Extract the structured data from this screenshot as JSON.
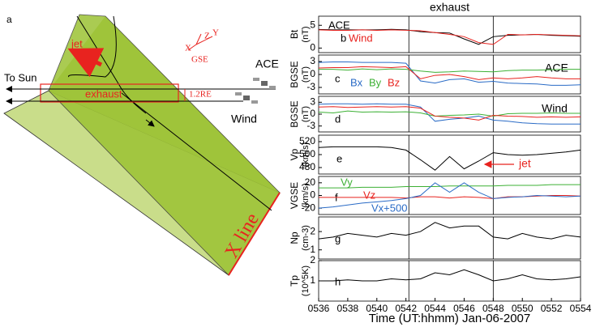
{
  "diagram": {
    "label": "a",
    "jet": "jet",
    "to_sun": "To Sun",
    "exhaust": "exhaust",
    "distance": "1.2RE",
    "ace": "ACE",
    "wind": "Wind",
    "x_line": "X line",
    "axes": {
      "x": "X",
      "y": "Y",
      "z": "Z",
      "frame": "GSE"
    }
  },
  "chart_data": [
    {
      "type": "line",
      "title": "exhaust",
      "panel": "b",
      "ylabel": "Bt",
      "yunit": "(nT)",
      "x": [
        536,
        537,
        538,
        539,
        540,
        541,
        542,
        543,
        544,
        545,
        546,
        547,
        548,
        549,
        550,
        551,
        552,
        553,
        554
      ],
      "xlim": [
        536,
        554
      ],
      "ylim": [
        -1,
        7
      ],
      "yticks": [
        0,
        5
      ],
      "vlines": [
        542.2,
        548
      ],
      "series": [
        {
          "name": "ACE",
          "color": "#000000",
          "values": [
            4.1,
            4,
            4,
            4,
            4,
            4.1,
            4,
            3.6,
            3.4,
            3.3,
            2,
            0.8,
            2.5,
            2.8,
            2.9,
            3,
            2.8,
            2.7,
            2.6
          ]
        },
        {
          "name": "Wind",
          "color": "#e8231f",
          "values": [
            4,
            3.9,
            3.9,
            4,
            3.9,
            4,
            3.9,
            3.8,
            3.4,
            3,
            2.5,
            1.2,
            0.8,
            3,
            2.9,
            3,
            2.9,
            2.8,
            2.7
          ]
        }
      ]
    },
    {
      "type": "line",
      "panel": "c",
      "ylabel": "BGSE",
      "yunit": "(nT)",
      "annotations": [
        "ACE"
      ],
      "x": [
        536,
        537,
        538,
        539,
        540,
        541,
        542,
        543,
        544,
        545,
        546,
        547,
        548,
        549,
        550,
        551,
        552,
        553,
        554
      ],
      "xlim": [
        536,
        554
      ],
      "ylim": [
        -4.5,
        4.5
      ],
      "yticks": [
        -3,
        0,
        3
      ],
      "vlines": [
        542.2,
        548
      ],
      "series": [
        {
          "name": "Bx",
          "color": "#2a6bc6",
          "values": [
            2.8,
            2.9,
            2.9,
            2.8,
            2.8,
            2.8,
            2.6,
            -1.5,
            -2,
            -1.2,
            -1,
            -1.8,
            -1.6,
            -2,
            -2.1,
            -2.2,
            -2.5,
            -2.5,
            -2.4
          ]
        },
        {
          "name": "By",
          "color": "#3cb034",
          "values": [
            1.2,
            1.2,
            1,
            1.3,
            1.1,
            1.3,
            1.2,
            0.8,
            0.5,
            0.6,
            0.8,
            0.7,
            0.6,
            0.9,
            1,
            1,
            1.1,
            1.2,
            1.2
          ]
        },
        {
          "name": "Bz",
          "color": "#e8231f",
          "values": [
            1.5,
            1.6,
            1.6,
            1.8,
            1.7,
            1.6,
            1.8,
            -1,
            -0.2,
            0,
            -0.5,
            -1.2,
            -0.8,
            -1,
            -0.8,
            -0.5,
            -0.8,
            -1,
            -1
          ]
        }
      ]
    },
    {
      "type": "line",
      "panel": "d",
      "ylabel": "BGSE",
      "yunit": "(nT)",
      "annotations": [
        "Wind"
      ],
      "x": [
        536,
        537,
        538,
        539,
        540,
        541,
        542,
        543,
        544,
        545,
        546,
        547,
        548,
        549,
        550,
        551,
        552,
        553,
        554
      ],
      "xlim": [
        536,
        554
      ],
      "ylim": [
        -4.5,
        4.5
      ],
      "yticks": [
        -3,
        0,
        3
      ],
      "vlines": [
        542.2,
        548
      ],
      "series": [
        {
          "color": "#2a6bc6",
          "values": [
            2.5,
            2.6,
            2.6,
            2.5,
            2.6,
            2.5,
            2.5,
            1.8,
            -1.8,
            -1.3,
            -1,
            -0.5,
            -1.5,
            -1.8,
            -2.2,
            -2.4,
            -2.5,
            -2.5,
            -2.5
          ]
        },
        {
          "color": "#3cb034",
          "values": [
            0.5,
            0.3,
            0.8,
            0.5,
            0.6,
            0.5,
            0.6,
            0.3,
            -0.5,
            -0.3,
            -0.2,
            0,
            -0.5,
            0.1,
            0.2,
            0.2,
            0.3,
            0.2,
            0.2
          ]
        },
        {
          "color": "#e8231f",
          "values": [
            1.8,
            1.9,
            1.7,
            1.8,
            1.9,
            1.8,
            1.9,
            1.5,
            -0.5,
            -0.8,
            -1,
            -1.5,
            -0.3,
            -0.5,
            -0.6,
            -0.8,
            -0.7,
            -0.8,
            -0.7
          ]
        }
      ]
    },
    {
      "type": "line",
      "panel": "e",
      "ylabel": "Vp",
      "yunit": "(km/s)",
      "annotations": [
        "jet"
      ],
      "x": [
        536,
        537,
        538,
        539,
        540,
        541,
        542,
        543,
        544,
        545,
        546,
        547,
        548,
        549,
        550,
        551,
        552,
        553,
        554
      ],
      "xlim": [
        536,
        554
      ],
      "ylim": [
        470,
        530
      ],
      "yticks": [
        480,
        500,
        520
      ],
      "vlines": [
        542.2,
        548
      ],
      "series": [
        {
          "color": "#000000",
          "values": [
            511,
            512,
            512,
            512,
            512,
            511,
            507,
            492,
            476,
            497,
            478,
            490,
            503,
            500,
            499,
            500,
            502,
            504,
            507
          ]
        }
      ]
    },
    {
      "type": "line",
      "panel": "f",
      "ylabel": "VGSE",
      "yunit": "(km/s)",
      "x": [
        536,
        537,
        538,
        539,
        540,
        541,
        542,
        543,
        544,
        545,
        546,
        547,
        548,
        549,
        550,
        551,
        552,
        553,
        554
      ],
      "xlim": [
        536,
        554
      ],
      "ylim": [
        -30,
        30
      ],
      "yticks": [
        -20,
        0,
        20
      ],
      "vlines": [
        542.2,
        548
      ],
      "series": [
        {
          "name": "Vy",
          "color": "#3cb034",
          "values": [
            12,
            12,
            12,
            13,
            13,
            13,
            14,
            14,
            14,
            15,
            15,
            15,
            15,
            16,
            16,
            16,
            17,
            17,
            17
          ]
        },
        {
          "name": "Vz",
          "color": "#e8231f",
          "values": [
            -3,
            -3,
            -3,
            -3,
            -3,
            -3,
            -4,
            -2,
            -2,
            -4,
            -2,
            -3,
            -5,
            -2,
            -2,
            -1,
            0,
            0,
            -1
          ]
        },
        {
          "name": "Vx+500",
          "color": "#2a6bc6",
          "values": [
            -20,
            -18,
            -15,
            -12,
            -10,
            -8,
            -5,
            0,
            20,
            5,
            20,
            5,
            -5,
            -3,
            -2,
            0,
            -1,
            -2,
            -1
          ]
        }
      ]
    },
    {
      "type": "line",
      "panel": "g",
      "ylabel": "Np",
      "yunit": "(cm-3)",
      "x": [
        536,
        537,
        538,
        539,
        540,
        541,
        542,
        543,
        544,
        545,
        546,
        547,
        548,
        549,
        550,
        551,
        552,
        553,
        554
      ],
      "xlim": [
        536,
        554
      ],
      "ylim": [
        0.5,
        2.8
      ],
      "yticks": [
        1,
        2
      ],
      "vlines": [
        542.2,
        548
      ],
      "series": [
        {
          "color": "#000000",
          "values": [
            1.6,
            1.7,
            1.9,
            1.8,
            1.7,
            1.9,
            1.8,
            2.0,
            2.5,
            2.2,
            2.3,
            2.3,
            1.7,
            1.6,
            1.9,
            1.7,
            1.6,
            1.8,
            1.7
          ]
        }
      ]
    },
    {
      "type": "line",
      "panel": "h",
      "ylabel": "Tp",
      "yunit": "(10^5K)",
      "xlabel": "Time (UT:hhmm) Jan-06-2007",
      "x": [
        536,
        537,
        538,
        539,
        540,
        541,
        542,
        543,
        544,
        545,
        546,
        547,
        548,
        549,
        550,
        551,
        552,
        553,
        554
      ],
      "xlim": [
        536,
        554
      ],
      "ylim": [
        0,
        2
      ],
      "yticks": [
        1,
        2
      ],
      "vlines": [
        542.2,
        548
      ],
      "xticks": [
        {
          "value": 536,
          "label": "0536"
        },
        {
          "value": 538,
          "label": "0538"
        },
        {
          "value": 540,
          "label": "0540"
        },
        {
          "value": 542,
          "label": "0542"
        },
        {
          "value": 544,
          "label": "0544"
        },
        {
          "value": 546,
          "label": "0546"
        },
        {
          "value": 548,
          "label": "0548"
        },
        {
          "value": 550,
          "label": "0550"
        },
        {
          "value": 552,
          "label": "0552"
        },
        {
          "value": 554,
          "label": "0554"
        }
      ],
      "series": [
        {
          "color": "#000000",
          "values": [
            1.0,
            1.0,
            1.05,
            1.0,
            1.0,
            1.1,
            1.05,
            1.1,
            1.4,
            1.3,
            1.55,
            1.3,
            1.0,
            1.1,
            1.3,
            1.1,
            1.05,
            1.1,
            1.2
          ]
        }
      ]
    }
  ]
}
